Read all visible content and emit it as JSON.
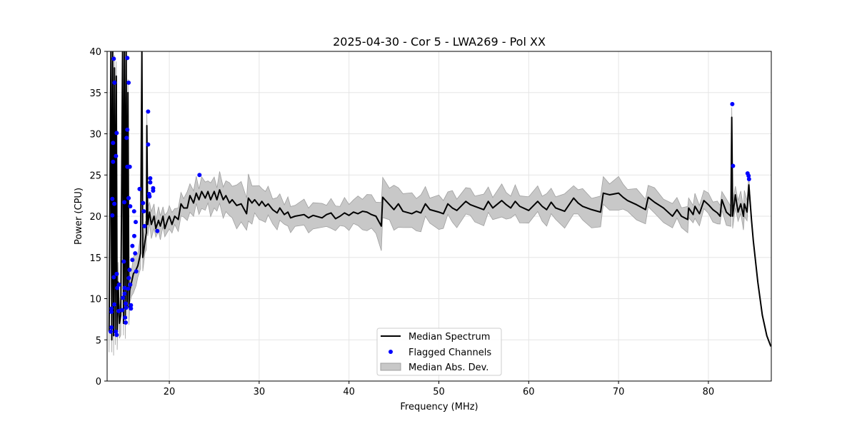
{
  "chart_data": {
    "type": "line",
    "title": "2025-04-30 - Cor 5 - LWA269 - Pol XX",
    "xlabel": "Frequency (MHz)",
    "ylabel": "Power (CPU)",
    "xlim": [
      13.08,
      87.0
    ],
    "ylim": [
      0,
      40
    ],
    "xticks": [
      20,
      30,
      40,
      50,
      60,
      70,
      80
    ],
    "yticks": [
      0,
      5,
      10,
      15,
      20,
      25,
      30,
      35,
      40
    ],
    "grid": true,
    "legend_position": "lower-center",
    "legend": [
      "Median Spectrum",
      "Flagged Channels",
      "Median Abs. Dev."
    ],
    "colors": {
      "median": "#000000",
      "flagged": "#0000ff",
      "mad": "#c8c8c8",
      "mad_edge": "#a0a0a0",
      "grid": "#e5e5e5"
    },
    "series": [
      {
        "name": "Median Spectrum",
        "points": [
          [
            13.3,
            6
          ],
          [
            13.5,
            40
          ],
          [
            13.6,
            5
          ],
          [
            13.7,
            40
          ],
          [
            13.8,
            5.5
          ],
          [
            13.9,
            38
          ],
          [
            14.0,
            6
          ],
          [
            14.1,
            37
          ],
          [
            14.2,
            6
          ],
          [
            14.3,
            12
          ],
          [
            14.45,
            7
          ],
          [
            14.6,
            8
          ],
          [
            14.8,
            40
          ],
          [
            14.9,
            7
          ],
          [
            15.0,
            40
          ],
          [
            15.1,
            7.5
          ],
          [
            15.2,
            40
          ],
          [
            15.3,
            9
          ],
          [
            15.4,
            35
          ],
          [
            15.5,
            9
          ],
          [
            15.6,
            11
          ],
          [
            15.8,
            12
          ],
          [
            16.0,
            13
          ],
          [
            16.3,
            13.5
          ],
          [
            16.5,
            14
          ],
          [
            16.8,
            15.5
          ],
          [
            16.95,
            40
          ],
          [
            17.05,
            15
          ],
          [
            17.3,
            17
          ],
          [
            17.45,
            18
          ],
          [
            17.5,
            31
          ],
          [
            17.6,
            19
          ],
          [
            17.8,
            20.5
          ],
          [
            18.0,
            19
          ],
          [
            18.3,
            20
          ],
          [
            18.5,
            18.5
          ],
          [
            18.8,
            19.5
          ],
          [
            19.0,
            18.8
          ],
          [
            19.3,
            20
          ],
          [
            19.5,
            18.5
          ],
          [
            19.8,
            19.5
          ],
          [
            20.0,
            20
          ],
          [
            20.3,
            19
          ],
          [
            20.6,
            20
          ],
          [
            21.0,
            19.6
          ],
          [
            21.3,
            21.5
          ],
          [
            21.6,
            21
          ],
          [
            22.0,
            21
          ],
          [
            22.3,
            22.5
          ],
          [
            22.7,
            21.6
          ],
          [
            23.0,
            22.8
          ],
          [
            23.3,
            22
          ],
          [
            23.6,
            23
          ],
          [
            24.0,
            22.2
          ],
          [
            24.3,
            23
          ],
          [
            24.6,
            22
          ],
          [
            25.0,
            23
          ],
          [
            25.3,
            22
          ],
          [
            25.6,
            23.2
          ],
          [
            26.0,
            22
          ],
          [
            26.3,
            22.5
          ],
          [
            26.7,
            21.6
          ],
          [
            27.0,
            22
          ],
          [
            27.5,
            21.3
          ],
          [
            28.0,
            21.5
          ],
          [
            28.6,
            20.3
          ],
          [
            28.8,
            22.2
          ],
          [
            29.2,
            21.6
          ],
          [
            29.5,
            22
          ],
          [
            30.0,
            21.3
          ],
          [
            30.3,
            21.8
          ],
          [
            30.7,
            21.2
          ],
          [
            31.0,
            21.5
          ],
          [
            31.5,
            20.8
          ],
          [
            32.0,
            20.4
          ],
          [
            32.3,
            21
          ],
          [
            32.8,
            20.2
          ],
          [
            33.2,
            20.5
          ],
          [
            33.5,
            19.8
          ],
          [
            34.0,
            20
          ],
          [
            35.0,
            20.2
          ],
          [
            35.5,
            19.8
          ],
          [
            36.0,
            20.1
          ],
          [
            37.0,
            19.8
          ],
          [
            37.5,
            20.2
          ],
          [
            38.0,
            20.4
          ],
          [
            38.5,
            19.7
          ],
          [
            39.0,
            20
          ],
          [
            39.5,
            20.4
          ],
          [
            40.0,
            20.1
          ],
          [
            40.5,
            20.5
          ],
          [
            41.0,
            20.3
          ],
          [
            41.5,
            20.6
          ],
          [
            42.0,
            20.5
          ],
          [
            42.5,
            20.2
          ],
          [
            43.0,
            20
          ],
          [
            43.6,
            18.8
          ],
          [
            43.75,
            22.3
          ],
          [
            44.5,
            21.4
          ],
          [
            45.0,
            20.8
          ],
          [
            45.5,
            21.5
          ],
          [
            46.0,
            20.6
          ],
          [
            47.0,
            20.3
          ],
          [
            47.5,
            20.6
          ],
          [
            48.0,
            20.4
          ],
          [
            48.5,
            21.5
          ],
          [
            49.0,
            20.8
          ],
          [
            50.0,
            20.5
          ],
          [
            50.5,
            20.3
          ],
          [
            51.0,
            21.5
          ],
          [
            51.5,
            21
          ],
          [
            52.0,
            20.7
          ],
          [
            53.0,
            21.8
          ],
          [
            53.5,
            21.4
          ],
          [
            54.0,
            21.2
          ],
          [
            55.0,
            20.8
          ],
          [
            55.5,
            21.8
          ],
          [
            56.0,
            21
          ],
          [
            57.0,
            21.9
          ],
          [
            57.5,
            21.4
          ],
          [
            58.0,
            21
          ],
          [
            58.5,
            21.8
          ],
          [
            59.0,
            21.2
          ],
          [
            60.0,
            20.7
          ],
          [
            61.0,
            21.8
          ],
          [
            61.5,
            21.2
          ],
          [
            62.0,
            20.8
          ],
          [
            62.5,
            21.7
          ],
          [
            63.0,
            21
          ],
          [
            64.0,
            20.6
          ],
          [
            65.0,
            22.2
          ],
          [
            65.5,
            21.6
          ],
          [
            66.0,
            21.2
          ],
          [
            67.0,
            20.8
          ],
          [
            68.0,
            20.5
          ],
          [
            68.3,
            22.8
          ],
          [
            69.0,
            22.6
          ],
          [
            70.0,
            22.8
          ],
          [
            70.5,
            22.3
          ],
          [
            71.0,
            21.9
          ],
          [
            72.0,
            21.4
          ],
          [
            73.0,
            20.8
          ],
          [
            73.3,
            22.3
          ],
          [
            74.0,
            21.7
          ],
          [
            75.0,
            21
          ],
          [
            76.0,
            20
          ],
          [
            76.5,
            20.8
          ],
          [
            77.0,
            20
          ],
          [
            77.7,
            19.6
          ],
          [
            77.8,
            21
          ],
          [
            78.3,
            20.2
          ],
          [
            78.5,
            21.2
          ],
          [
            79.0,
            20.3
          ],
          [
            79.5,
            21.9
          ],
          [
            80.0,
            21.4
          ],
          [
            80.5,
            20.8
          ],
          [
            81.0,
            20.4
          ],
          [
            81.3,
            20
          ],
          [
            81.5,
            22
          ],
          [
            82.0,
            20.5
          ],
          [
            82.5,
            20
          ],
          [
            82.6,
            32
          ],
          [
            82.7,
            20
          ],
          [
            83.0,
            22.6
          ],
          [
            83.3,
            20.5
          ],
          [
            83.6,
            21.5
          ],
          [
            83.9,
            20
          ],
          [
            84.0,
            21.5
          ],
          [
            84.3,
            20.5
          ],
          [
            84.5,
            23.8
          ],
          [
            84.8,
            19.5
          ],
          [
            85.0,
            17
          ],
          [
            85.5,
            12
          ],
          [
            86.0,
            8
          ],
          [
            86.5,
            5.5
          ],
          [
            86.95,
            4.2
          ]
        ]
      },
      {
        "name": "Median Abs. Dev.",
        "half_width_breakpoints": [
          [
            13.3,
            2.0
          ],
          [
            17.5,
            1.8
          ],
          [
            18.0,
            1.4
          ],
          [
            21.0,
            1.2
          ],
          [
            22.0,
            1.6
          ],
          [
            26.0,
            1.8
          ],
          [
            28.5,
            2.6
          ],
          [
            29.5,
            2.0
          ],
          [
            33.0,
            1.5
          ],
          [
            40.0,
            1.5
          ],
          [
            43.6,
            2.4
          ],
          [
            44.0,
            2.5
          ],
          [
            50.0,
            1.7
          ],
          [
            60.0,
            1.6
          ],
          [
            68.0,
            1.8
          ],
          [
            73.0,
            1.5
          ],
          [
            80.0,
            1.2
          ],
          [
            84.5,
            1.4
          ],
          [
            84.6,
            0
          ],
          [
            87.0,
            0
          ]
        ]
      },
      {
        "name": "Flagged Channels",
        "points": [
          [
            13.82,
            39.1
          ],
          [
            13.9,
            36.2
          ],
          [
            14.14,
            30.1
          ],
          [
            13.74,
            28.9
          ],
          [
            14.06,
            27.3
          ],
          [
            13.74,
            26.6
          ],
          [
            13.66,
            22.1
          ],
          [
            13.88,
            21.5
          ],
          [
            13.66,
            20.1
          ],
          [
            13.82,
            12.6
          ],
          [
            14.14,
            13.0
          ],
          [
            14.2,
            11.3
          ],
          [
            14.4,
            11.7
          ],
          [
            13.88,
            9.3
          ],
          [
            13.56,
            8.8
          ],
          [
            13.56,
            8.4
          ],
          [
            13.56,
            6.5
          ],
          [
            13.48,
            6.0
          ],
          [
            14.06,
            6.0
          ],
          [
            14.14,
            5.6
          ],
          [
            14.36,
            8.5
          ],
          [
            15.33,
            39.2
          ],
          [
            15.47,
            36.2
          ],
          [
            15.33,
            30.5
          ],
          [
            15.25,
            29.5
          ],
          [
            15.33,
            26.0
          ],
          [
            15.6,
            26.0
          ],
          [
            15.47,
            22.2
          ],
          [
            15.0,
            21.7
          ],
          [
            15.65,
            21.2
          ],
          [
            16.08,
            20.6
          ],
          [
            16.26,
            19.3
          ],
          [
            16.1,
            17.6
          ],
          [
            15.89,
            16.4
          ],
          [
            16.2,
            15.5
          ],
          [
            15.89,
            14.7
          ],
          [
            14.94,
            14.5
          ],
          [
            15.57,
            13.5
          ],
          [
            16.32,
            13.3
          ],
          [
            15.49,
            12.5
          ],
          [
            15.65,
            11.7
          ],
          [
            15.02,
            11.3
          ],
          [
            15.42,
            11.2
          ],
          [
            15.02,
            10.6
          ],
          [
            14.83,
            10.1
          ],
          [
            15.15,
            9.4
          ],
          [
            15.73,
            9.2
          ],
          [
            14.75,
            8.6
          ],
          [
            15.2,
            8.9
          ],
          [
            15.73,
            8.8
          ],
          [
            15.07,
            7.7
          ],
          [
            15.15,
            7.1
          ],
          [
            16.69,
            23.3
          ],
          [
            17.08,
            21.6
          ],
          [
            17.16,
            20.6
          ],
          [
            17.24,
            18.8
          ],
          [
            17.64,
            32.7
          ],
          [
            17.64,
            28.7
          ],
          [
            17.88,
            24.6
          ],
          [
            17.88,
            24.1
          ],
          [
            18.2,
            23.4
          ],
          [
            18.2,
            23.1
          ],
          [
            17.75,
            22.7
          ],
          [
            17.8,
            22.4
          ],
          [
            18.67,
            18.2
          ],
          [
            23.36,
            25.0
          ],
          [
            82.66,
            33.6
          ],
          [
            82.74,
            26.1
          ],
          [
            84.36,
            25.2
          ],
          [
            84.47,
            24.9
          ],
          [
            84.52,
            24.5
          ]
        ]
      }
    ]
  }
}
